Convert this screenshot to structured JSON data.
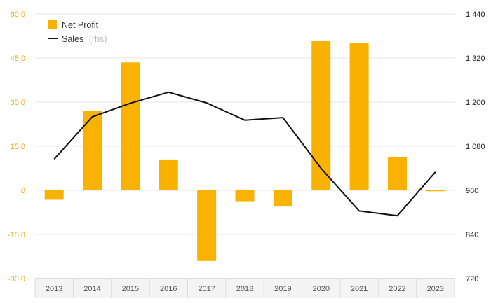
{
  "chart_data": {
    "type": "bar",
    "categories": [
      "2013",
      "2014",
      "2015",
      "2016",
      "2017",
      "2018",
      "2019",
      "2020",
      "2021",
      "2022",
      "2023"
    ],
    "series": [
      {
        "name": "Net Profit",
        "type": "bar",
        "axis": "left",
        "color": "#f9b200",
        "values": [
          -3.2,
          27.0,
          43.5,
          10.5,
          -24.0,
          -3.7,
          -5.5,
          50.8,
          50.0,
          11.3,
          -0.3
        ]
      },
      {
        "name": "Sales",
        "name_suffix": "(rhs)",
        "type": "line",
        "axis": "right",
        "color": "#111111",
        "values": [
          1045,
          1160,
          1197,
          1227,
          1198,
          1151,
          1158,
          1020,
          904,
          891,
          1010
        ]
      }
    ],
    "y_left": {
      "ylim": [
        -30,
        60
      ],
      "ticks": [
        "60.0",
        "45.0",
        "30.0",
        "15.0",
        "0",
        "-15.0",
        "-30.0"
      ],
      "tick_color": "#f0a800"
    },
    "y_right": {
      "ylim": [
        720,
        1440
      ],
      "ticks": [
        "1 440",
        "1 320",
        "1 200",
        "1 080",
        "960",
        "840",
        "720"
      ]
    },
    "grid": true,
    "legend_position": "top-left"
  }
}
